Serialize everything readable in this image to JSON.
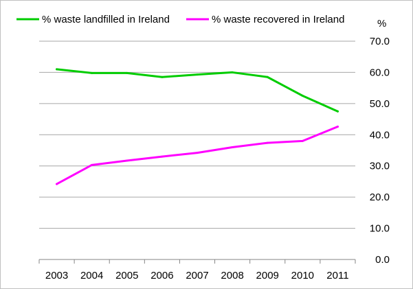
{
  "chart_data": {
    "type": "line",
    "categories": [
      "2003",
      "2004",
      "2005",
      "2006",
      "2007",
      "2008",
      "2009",
      "2010",
      "2011"
    ],
    "series": [
      {
        "name": "% waste landfilled in Ireland",
        "color": "#00cc00",
        "values": [
          61.0,
          59.8,
          59.8,
          58.5,
          59.3,
          60.0,
          58.5,
          52.5,
          47.5
        ]
      },
      {
        "name": "% waste recovered in Ireland",
        "color": "#ff00ff",
        "values": [
          24.2,
          30.3,
          31.7,
          33.0,
          34.2,
          36.0,
          37.4,
          38.0,
          42.6
        ]
      }
    ],
    "ylabel": "%",
    "ylim": [
      0,
      70
    ],
    "ytick_labels": [
      "0.0",
      "10.0",
      "20.0",
      "30.0",
      "40.0",
      "50.0",
      "60.0",
      "70.0"
    ],
    "y_axis_side": "right",
    "grid": true,
    "legend_position": "top"
  }
}
